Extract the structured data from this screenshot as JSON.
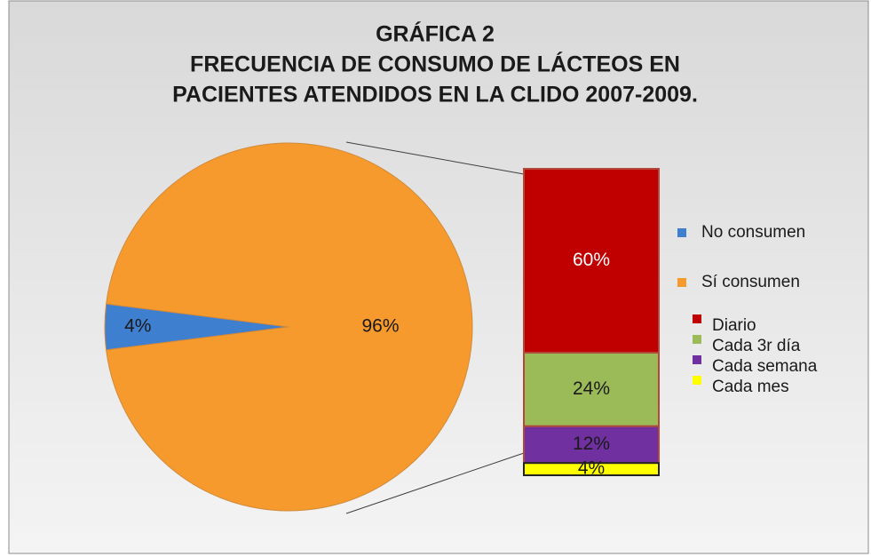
{
  "chart_data": {
    "type": "pie",
    "title": [
      "GRÁFICA 2",
      "FRECUENCIA DE CONSUMO DE LÁCTEOS EN",
      "PACIENTES ATENDIDOS EN LA CLIDO 2007-2009."
    ],
    "categories": [
      "No consumen",
      "Sí consumen"
    ],
    "values": [
      4,
      96
    ],
    "value_labels": [
      "4%",
      "96%"
    ],
    "colors": [
      "#3f7fd0",
      "#f79a2e"
    ],
    "breakdown": {
      "type": "stacked-bar",
      "categories": [
        "Diario",
        "Cada 3r día",
        "Cada semana",
        "Cada mes"
      ],
      "values": [
        60,
        24,
        12,
        4
      ],
      "value_labels": [
        "60%",
        "24%",
        "12%",
        "4%"
      ],
      "colors": [
        "#c00000",
        "#9bbb59",
        "#7030a0",
        "#ffff00"
      ]
    }
  }
}
